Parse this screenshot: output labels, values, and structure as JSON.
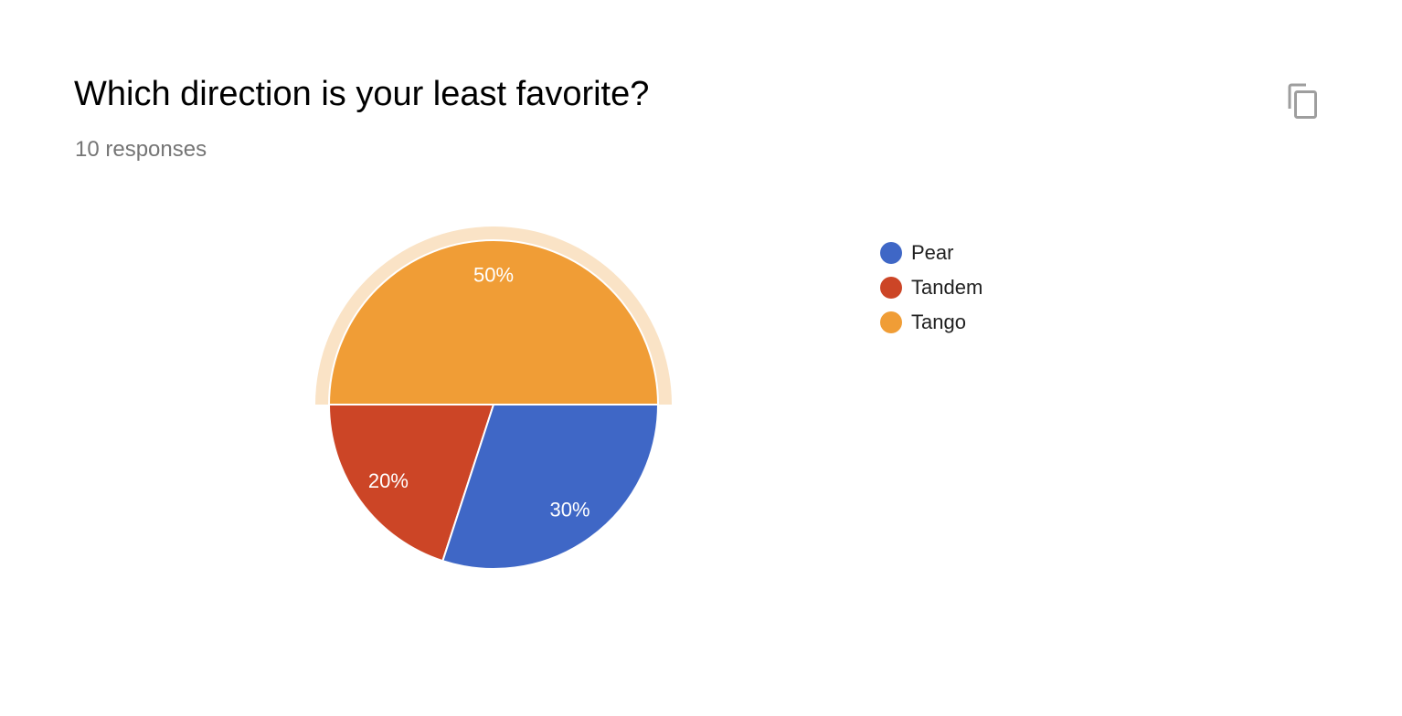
{
  "question": {
    "title": "Which direction is your least favorite?",
    "responses_text": "10 responses"
  },
  "toolbar": {
    "copy_icon": "copy-icon"
  },
  "chart_data": {
    "type": "pie",
    "title": "",
    "legend_placement": "right",
    "categories": [
      "Pear",
      "Tandem",
      "Tango"
    ],
    "values": [
      30,
      20,
      50
    ],
    "labels": [
      "30%",
      "20%",
      "50%"
    ],
    "colors": [
      "#3f67c6",
      "#cc4526",
      "#f09d36"
    ],
    "highlighted": "Tango",
    "highlight_color": "#fae3c6"
  }
}
